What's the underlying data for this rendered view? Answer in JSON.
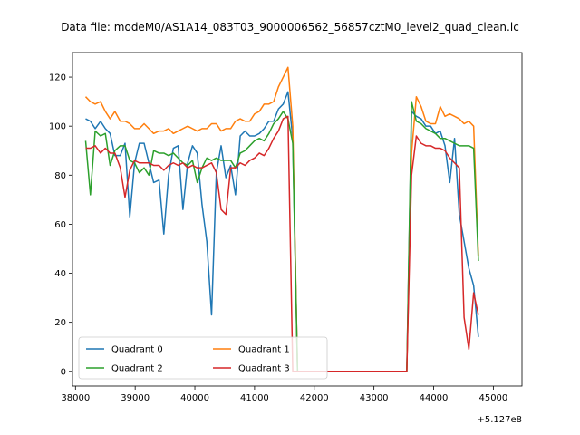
{
  "chart_data": {
    "type": "line",
    "title": "Data file: modeM0/AS1A14_083T03_9000006562_56857cztM0_level2_quad_clean.lc",
    "xlabel": "",
    "ylabel": "",
    "x_offset_label": "+5.127e8",
    "xlim": [
      37950,
      45480
    ],
    "ylim": [
      -6,
      130
    ],
    "x_ticks": [
      38000,
      39000,
      40000,
      41000,
      42000,
      43000,
      44000,
      45000
    ],
    "y_ticks": [
      0,
      20,
      40,
      60,
      80,
      100,
      120
    ],
    "grid": false,
    "legend": {
      "placement": "lower-left",
      "columns": 2
    },
    "series": [
      {
        "name": "Quadrant 0",
        "color": "#1f77b4",
        "points": [
          [
            38170,
            103
          ],
          [
            38250,
            102
          ],
          [
            38330,
            99
          ],
          [
            38420,
            102
          ],
          [
            38500,
            99
          ],
          [
            38580,
            97
          ],
          [
            38660,
            88
          ],
          [
            38750,
            88
          ],
          [
            38830,
            93
          ],
          [
            38910,
            63
          ],
          [
            38990,
            85
          ],
          [
            39070,
            93
          ],
          [
            39150,
            93
          ],
          [
            39230,
            85
          ],
          [
            39310,
            77
          ],
          [
            39400,
            78
          ],
          [
            39480,
            56
          ],
          [
            39560,
            80
          ],
          [
            39640,
            91
          ],
          [
            39720,
            92
          ],
          [
            39800,
            66
          ],
          [
            39880,
            85
          ],
          [
            39960,
            92
          ],
          [
            40040,
            89
          ],
          [
            40120,
            68
          ],
          [
            40200,
            53
          ],
          [
            40280,
            23
          ],
          [
            40360,
            81
          ],
          [
            40440,
            92
          ],
          [
            40520,
            79
          ],
          [
            40600,
            84
          ],
          [
            40680,
            72
          ],
          [
            40760,
            96
          ],
          [
            40840,
            98
          ],
          [
            40920,
            96
          ],
          [
            41000,
            96
          ],
          [
            41080,
            97
          ],
          [
            41160,
            99
          ],
          [
            41240,
            102
          ],
          [
            41320,
            102
          ],
          [
            41400,
            107
          ],
          [
            41480,
            109
          ],
          [
            41560,
            114
          ],
          [
            41640,
            95
          ],
          [
            41720,
            0
          ],
          [
            43550,
            0
          ],
          [
            43630,
            106
          ],
          [
            43710,
            104
          ],
          [
            43790,
            103
          ],
          [
            43870,
            100
          ],
          [
            43950,
            100
          ],
          [
            44030,
            97
          ],
          [
            44110,
            98
          ],
          [
            44190,
            92
          ],
          [
            44270,
            77
          ],
          [
            44350,
            95
          ],
          [
            44430,
            64
          ],
          [
            44510,
            53
          ],
          [
            44590,
            42
          ],
          [
            44670,
            35
          ],
          [
            44750,
            14
          ]
        ]
      },
      {
        "name": "Quadrant 1",
        "color": "#ff7f0e",
        "points": [
          [
            38170,
            112
          ],
          [
            38250,
            110
          ],
          [
            38330,
            109
          ],
          [
            38420,
            110
          ],
          [
            38500,
            106
          ],
          [
            38580,
            103
          ],
          [
            38660,
            106
          ],
          [
            38750,
            102
          ],
          [
            38830,
            102
          ],
          [
            38910,
            101
          ],
          [
            38990,
            99
          ],
          [
            39070,
            99
          ],
          [
            39150,
            101
          ],
          [
            39230,
            99
          ],
          [
            39310,
            97
          ],
          [
            39400,
            98
          ],
          [
            39480,
            98
          ],
          [
            39560,
            99
          ],
          [
            39640,
            97
          ],
          [
            39720,
            98
          ],
          [
            39800,
            99
          ],
          [
            39880,
            100
          ],
          [
            39960,
            99
          ],
          [
            40040,
            98
          ],
          [
            40120,
            99
          ],
          [
            40200,
            99
          ],
          [
            40280,
            101
          ],
          [
            40360,
            101
          ],
          [
            40440,
            98
          ],
          [
            40520,
            99
          ],
          [
            40600,
            99
          ],
          [
            40680,
            102
          ],
          [
            40760,
            103
          ],
          [
            40840,
            102
          ],
          [
            40920,
            102
          ],
          [
            41000,
            105
          ],
          [
            41080,
            106
          ],
          [
            41160,
            109
          ],
          [
            41240,
            109
          ],
          [
            41320,
            110
          ],
          [
            41400,
            116
          ],
          [
            41480,
            120
          ],
          [
            41560,
            124
          ],
          [
            41640,
            100
          ],
          [
            41720,
            0
          ],
          [
            43550,
            0
          ],
          [
            43630,
            89
          ],
          [
            43710,
            112
          ],
          [
            43790,
            108
          ],
          [
            43870,
            102
          ],
          [
            43950,
            101
          ],
          [
            44030,
            101
          ],
          [
            44110,
            108
          ],
          [
            44190,
            104
          ],
          [
            44270,
            105
          ],
          [
            44350,
            104
          ],
          [
            44430,
            103
          ],
          [
            44510,
            101
          ],
          [
            44590,
            102
          ],
          [
            44670,
            100
          ],
          [
            44750,
            47
          ]
        ]
      },
      {
        "name": "Quadrant 2",
        "color": "#2ca02c",
        "points": [
          [
            38170,
            94
          ],
          [
            38250,
            72
          ],
          [
            38330,
            98
          ],
          [
            38420,
            96
          ],
          [
            38500,
            97
          ],
          [
            38580,
            84
          ],
          [
            38660,
            90
          ],
          [
            38750,
            92
          ],
          [
            38830,
            92
          ],
          [
            38910,
            86
          ],
          [
            38990,
            85
          ],
          [
            39070,
            81
          ],
          [
            39150,
            83
          ],
          [
            39230,
            80
          ],
          [
            39310,
            90
          ],
          [
            39400,
            89
          ],
          [
            39480,
            89
          ],
          [
            39560,
            88
          ],
          [
            39640,
            89
          ],
          [
            39720,
            87
          ],
          [
            39800,
            85
          ],
          [
            39880,
            84
          ],
          [
            39960,
            86
          ],
          [
            40040,
            77
          ],
          [
            40120,
            83
          ],
          [
            40200,
            87
          ],
          [
            40280,
            86
          ],
          [
            40360,
            87
          ],
          [
            40440,
            86
          ],
          [
            40520,
            86
          ],
          [
            40600,
            86
          ],
          [
            40680,
            83
          ],
          [
            40760,
            89
          ],
          [
            40840,
            90
          ],
          [
            40920,
            92
          ],
          [
            41000,
            94
          ],
          [
            41080,
            95
          ],
          [
            41160,
            94
          ],
          [
            41240,
            97
          ],
          [
            41320,
            101
          ],
          [
            41400,
            103
          ],
          [
            41480,
            106
          ],
          [
            41560,
            103
          ],
          [
            41640,
            93
          ],
          [
            41720,
            0
          ],
          [
            43550,
            0
          ],
          [
            43630,
            110
          ],
          [
            43710,
            102
          ],
          [
            43790,
            101
          ],
          [
            43870,
            99
          ],
          [
            43950,
            98
          ],
          [
            44030,
            97
          ],
          [
            44110,
            95
          ],
          [
            44190,
            95
          ],
          [
            44270,
            94
          ],
          [
            44350,
            93
          ],
          [
            44430,
            92
          ],
          [
            44510,
            92
          ],
          [
            44590,
            92
          ],
          [
            44670,
            91
          ],
          [
            44750,
            45
          ]
        ]
      },
      {
        "name": "Quadrant 3",
        "color": "#d62728",
        "points": [
          [
            38170,
            91
          ],
          [
            38250,
            91
          ],
          [
            38330,
            92
          ],
          [
            38420,
            89
          ],
          [
            38500,
            91
          ],
          [
            38580,
            89
          ],
          [
            38660,
            89
          ],
          [
            38750,
            83
          ],
          [
            38830,
            71
          ],
          [
            38910,
            82
          ],
          [
            38990,
            86
          ],
          [
            39070,
            85
          ],
          [
            39150,
            85
          ],
          [
            39230,
            85
          ],
          [
            39310,
            84
          ],
          [
            39400,
            84
          ],
          [
            39480,
            82
          ],
          [
            39560,
            84
          ],
          [
            39640,
            85
          ],
          [
            39720,
            84
          ],
          [
            39800,
            85
          ],
          [
            39880,
            83
          ],
          [
            39960,
            84
          ],
          [
            40040,
            83
          ],
          [
            40120,
            83
          ],
          [
            40200,
            84
          ],
          [
            40280,
            85
          ],
          [
            40360,
            81
          ],
          [
            40440,
            66
          ],
          [
            40520,
            64
          ],
          [
            40600,
            83
          ],
          [
            40680,
            83
          ],
          [
            40760,
            85
          ],
          [
            40840,
            84
          ],
          [
            40920,
            86
          ],
          [
            41000,
            87
          ],
          [
            41080,
            89
          ],
          [
            41160,
            88
          ],
          [
            41240,
            91
          ],
          [
            41320,
            95
          ],
          [
            41400,
            98
          ],
          [
            41480,
            103
          ],
          [
            41560,
            104
          ],
          [
            41640,
            0
          ],
          [
            41720,
            0
          ],
          [
            43550,
            0
          ],
          [
            43630,
            80
          ],
          [
            43710,
            96
          ],
          [
            43790,
            93
          ],
          [
            43870,
            92
          ],
          [
            43950,
            92
          ],
          [
            44030,
            91
          ],
          [
            44110,
            91
          ],
          [
            44190,
            90
          ],
          [
            44270,
            87
          ],
          [
            44350,
            85
          ],
          [
            44430,
            83
          ],
          [
            44510,
            22
          ],
          [
            44590,
            9
          ],
          [
            44670,
            32
          ],
          [
            44750,
            23
          ]
        ]
      }
    ]
  }
}
